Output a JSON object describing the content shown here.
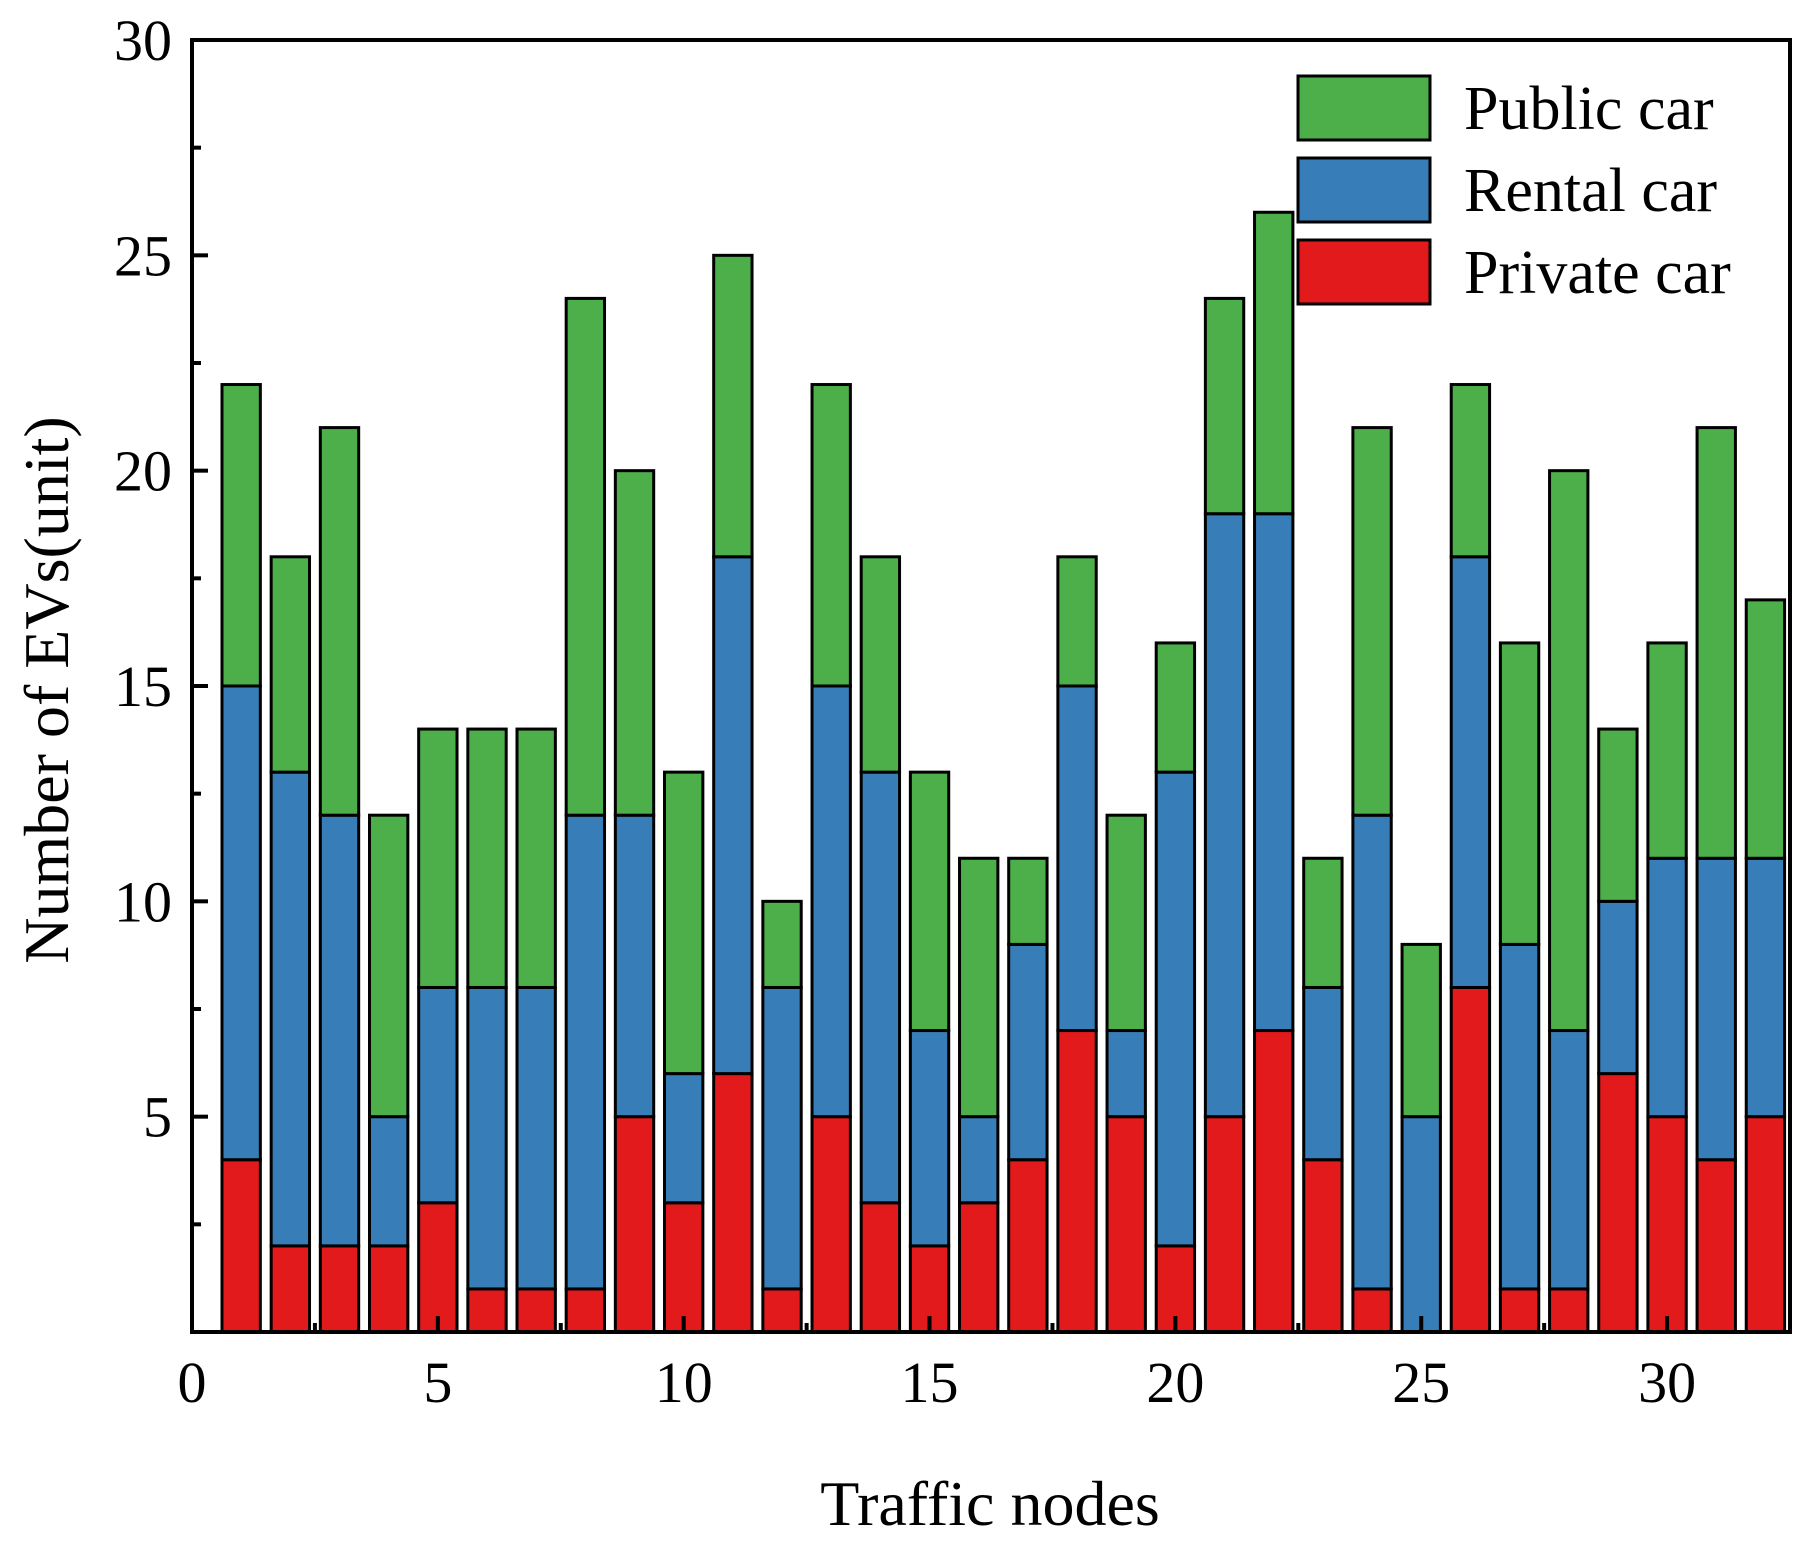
{
  "chart_data": {
    "type": "stacked-bar",
    "xlabel": "Traffic nodes",
    "ylabel": "Number of EVs(unit)",
    "xlim": [
      0,
      32.5
    ],
    "ylim": [
      0,
      30
    ],
    "xticks": [
      0,
      5,
      10,
      15,
      20,
      25,
      30
    ],
    "yticks": [
      5,
      10,
      15,
      20,
      25,
      30
    ],
    "categories": [
      1,
      2,
      3,
      4,
      5,
      6,
      7,
      8,
      9,
      10,
      11,
      12,
      13,
      14,
      15,
      16,
      17,
      18,
      19,
      20,
      21,
      22,
      23,
      24,
      25,
      26,
      27,
      28,
      29,
      30,
      31,
      32
    ],
    "series": [
      {
        "name": "Private car",
        "color": "#e31a1c",
        "values": [
          4,
          2,
          2,
          2,
          3,
          1,
          1,
          1,
          5,
          3,
          6,
          1,
          5,
          3,
          2,
          3,
          4,
          7,
          5,
          2,
          5,
          7,
          4,
          1,
          0,
          8,
          1,
          1,
          6,
          5,
          4,
          5
        ]
      },
      {
        "name": "Rental car",
        "color": "#377eb8",
        "values": [
          11,
          11,
          10,
          3,
          5,
          7,
          7,
          11,
          7,
          3,
          12,
          7,
          10,
          10,
          5,
          2,
          5,
          8,
          2,
          11,
          14,
          12,
          4,
          11,
          5,
          10,
          8,
          6,
          4,
          6,
          7,
          6
        ]
      },
      {
        "name": "Public car",
        "color": "#4daf4a",
        "values": [
          7,
          5,
          9,
          7,
          6,
          6,
          6,
          12,
          8,
          7,
          7,
          2,
          7,
          5,
          6,
          6,
          2,
          3,
          5,
          3,
          5,
          7,
          3,
          9,
          4,
          4,
          7,
          13,
          4,
          5,
          10,
          6
        ]
      }
    ],
    "legend": {
      "position": "top-right",
      "entries": [
        "Public car",
        "Rental car",
        "Private car"
      ]
    }
  }
}
